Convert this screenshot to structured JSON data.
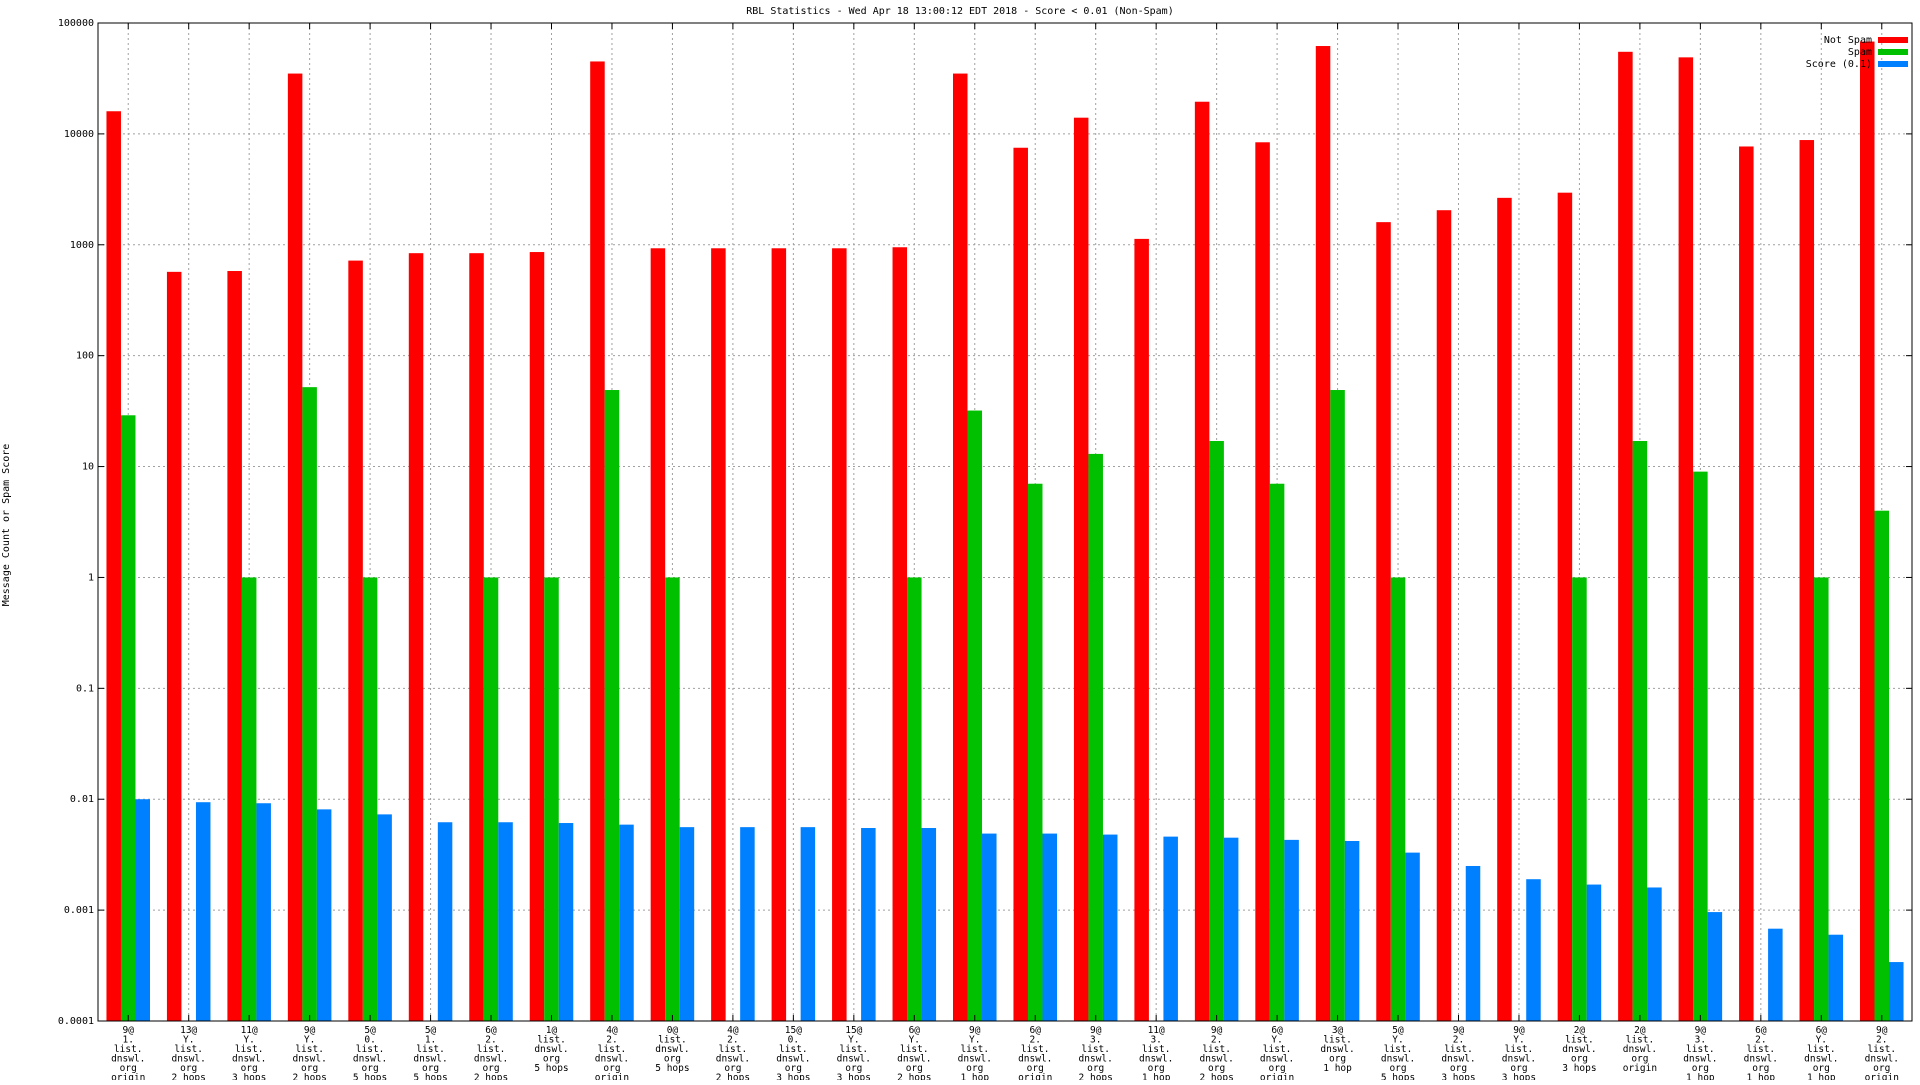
{
  "chart_data": {
    "type": "bar",
    "title": "RBL Statistics - Wed Apr 18 13:00:12 EDT 2018 - Score < 0.01 (Non-Spam)",
    "ylabel": "Message Count or Spam Score",
    "xlabel": "",
    "y_scale": "log",
    "ylim": [
      0.0001,
      100000
    ],
    "y_ticks": [
      "0.0001",
      "0.001",
      "0.01",
      "0.1",
      "1",
      "10",
      "100",
      "1000",
      "10000",
      "100000"
    ],
    "grid": true,
    "legend_position": "top-right",
    "colors": {
      "not_spam": "#ff0000",
      "spam": "#00c000",
      "score": "#0080ff"
    },
    "categories": [
      [
        "9@",
        "1.",
        "list.",
        "dnswl.",
        "org",
        "origin"
      ],
      [
        "13@",
        "Y.",
        "list.",
        "dnswl.",
        "org",
        "2 hops"
      ],
      [
        "11@",
        "Y.",
        "list.",
        "dnswl.",
        "org",
        "3 hops"
      ],
      [
        "9@",
        "Y.",
        "list.",
        "dnswl.",
        "org",
        "2 hops"
      ],
      [
        "5@",
        "0.",
        "list.",
        "dnswl.",
        "org",
        "5 hops"
      ],
      [
        "5@",
        "1.",
        "list.",
        "dnswl.",
        "org",
        "5 hops"
      ],
      [
        "6@",
        "2.",
        "list.",
        "dnswl.",
        "org",
        "2 hops"
      ],
      [
        "1@",
        "list.",
        "dnswl.",
        "org",
        "5 hops"
      ],
      [
        "4@",
        "2.",
        "list.",
        "dnswl.",
        "org",
        "origin"
      ],
      [
        "0@",
        "list.",
        "dnswl.",
        "org",
        "5 hops"
      ],
      [
        "4@",
        "2.",
        "list.",
        "dnswl.",
        "org",
        "2 hops"
      ],
      [
        "15@",
        "0.",
        "list.",
        "dnswl.",
        "org",
        "3 hops"
      ],
      [
        "15@",
        "Y.",
        "list.",
        "dnswl.",
        "org",
        "3 hops"
      ],
      [
        "6@",
        "Y.",
        "list.",
        "dnswl.",
        "org",
        "2 hops"
      ],
      [
        "9@",
        "Y.",
        "list.",
        "dnswl.",
        "org",
        "1 hop"
      ],
      [
        "6@",
        "2.",
        "list.",
        "dnswl.",
        "org",
        "origin"
      ],
      [
        "9@",
        "3.",
        "list.",
        "dnswl.",
        "org",
        "2 hops"
      ],
      [
        "11@",
        "3.",
        "list.",
        "dnswl.",
        "org",
        "1 hop"
      ],
      [
        "9@",
        "2.",
        "list.",
        "dnswl.",
        "org",
        "2 hops"
      ],
      [
        "6@",
        "Y.",
        "list.",
        "dnswl.",
        "org",
        "origin"
      ],
      [
        "3@",
        "list.",
        "dnswl.",
        "org",
        "1 hop"
      ],
      [
        "5@",
        "Y.",
        "list.",
        "dnswl.",
        "org",
        "5 hops"
      ],
      [
        "9@",
        "2.",
        "list.",
        "dnswl.",
        "org",
        "3 hops"
      ],
      [
        "9@",
        "Y.",
        "list.",
        "dnswl.",
        "org",
        "3 hops"
      ],
      [
        "2@",
        "list.",
        "dnswl.",
        "org",
        "3 hops"
      ],
      [
        "2@",
        "list.",
        "dnswl.",
        "org",
        "origin"
      ],
      [
        "9@",
        "3.",
        "list.",
        "dnswl.",
        "org",
        "1 hop"
      ],
      [
        "6@",
        "2.",
        "list.",
        "dnswl.",
        "org",
        "1 hop"
      ],
      [
        "6@",
        "Y.",
        "list.",
        "dnswl.",
        "org",
        "1 hop"
      ],
      [
        "9@",
        "2.",
        "list.",
        "dnswl.",
        "org",
        "origin"
      ]
    ],
    "series": [
      {
        "name": "Not Spam",
        "color": "#ff0000",
        "values": [
          16000,
          570,
          580,
          35000,
          720,
          840,
          840,
          860,
          45000,
          930,
          930,
          930,
          930,
          950,
          35000,
          7500,
          14000,
          1130,
          19500,
          8400,
          62000,
          1600,
          2050,
          2650,
          2950,
          55000,
          49000,
          7700,
          8800,
          68000
        ]
      },
      {
        "name": "Spam",
        "color": "#00c000",
        "values": [
          29,
          null,
          1,
          52,
          1,
          null,
          1,
          1,
          49,
          1,
          null,
          null,
          null,
          1,
          32,
          7,
          13,
          null,
          17,
          7,
          49,
          1,
          null,
          null,
          1,
          17,
          9,
          null,
          1,
          4
        ]
      },
      {
        "name": "Score (0.1)",
        "color": "#0080ff",
        "values": [
          0.01,
          0.0094,
          0.0092,
          0.0081,
          0.0073,
          0.0062,
          0.0062,
          0.0061,
          0.0059,
          0.0056,
          0.0056,
          0.0056,
          0.0055,
          0.0055,
          0.0049,
          0.0049,
          0.0048,
          0.0046,
          0.0045,
          0.0043,
          0.0042,
          0.0033,
          0.0025,
          0.0019,
          0.0017,
          0.0016,
          0.00096,
          0.00068,
          0.0006,
          0.00034
        ]
      }
    ]
  }
}
